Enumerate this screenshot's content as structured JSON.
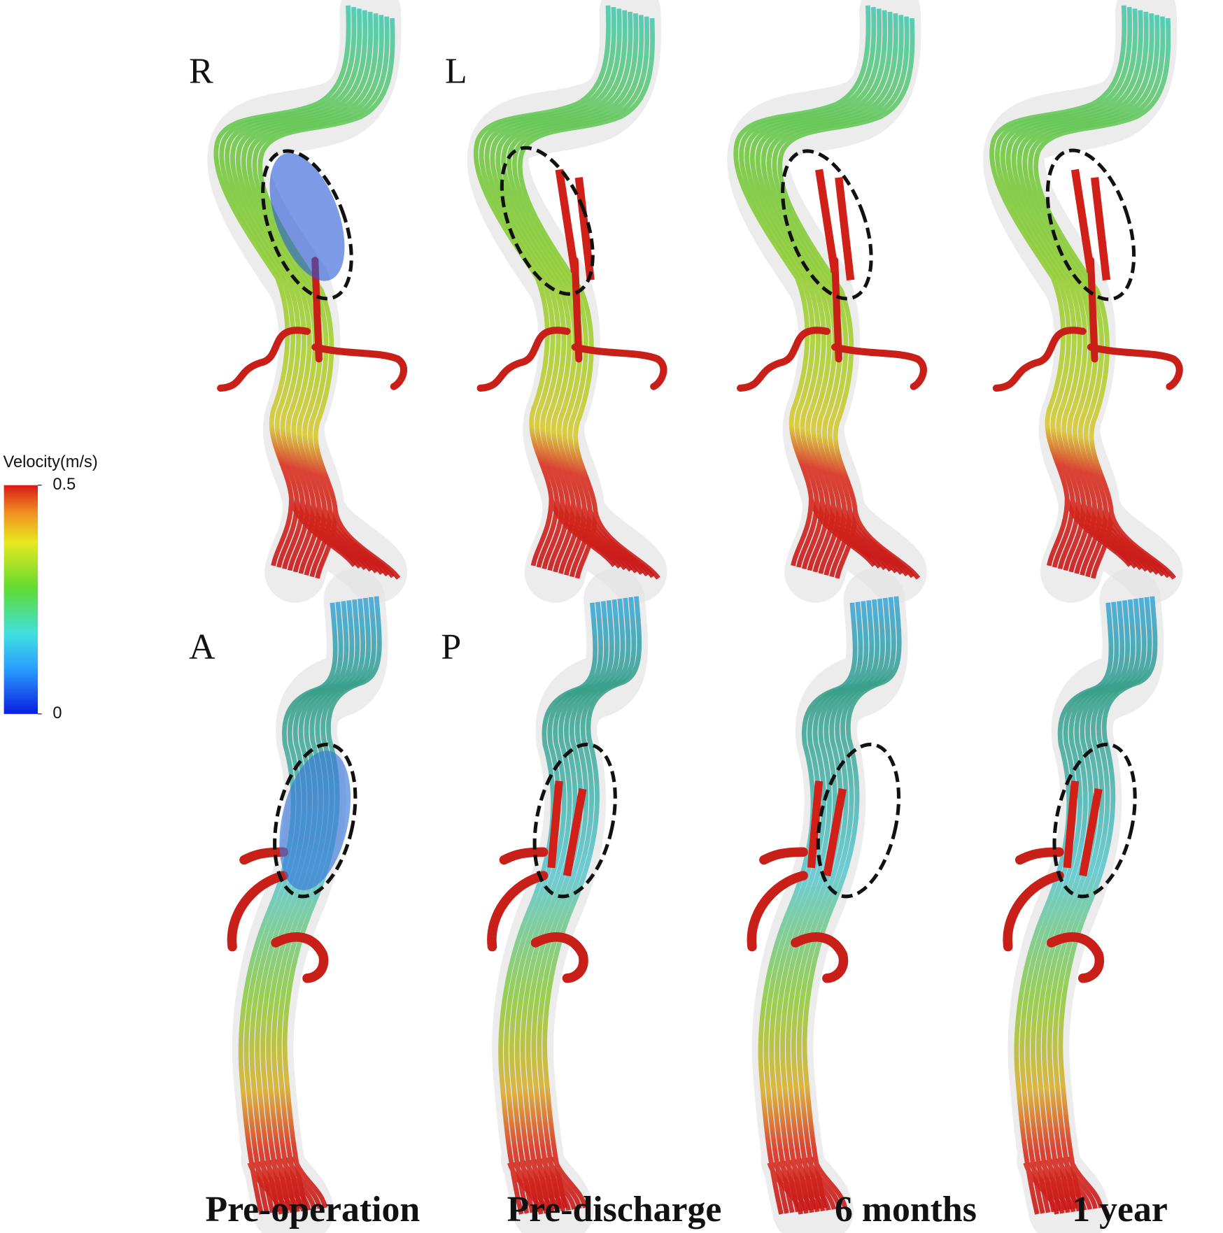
{
  "orientation_labels": [
    "R",
    "L",
    "A",
    "P"
  ],
  "colorbar": {
    "title": "Velocity(m/s)",
    "range": [
      0,
      0.5
    ],
    "ticks": [
      0,
      0.5
    ]
  },
  "columns": [
    "Pre-operation",
    "Pre-discharge",
    "6 months",
    "1 year"
  ]
}
